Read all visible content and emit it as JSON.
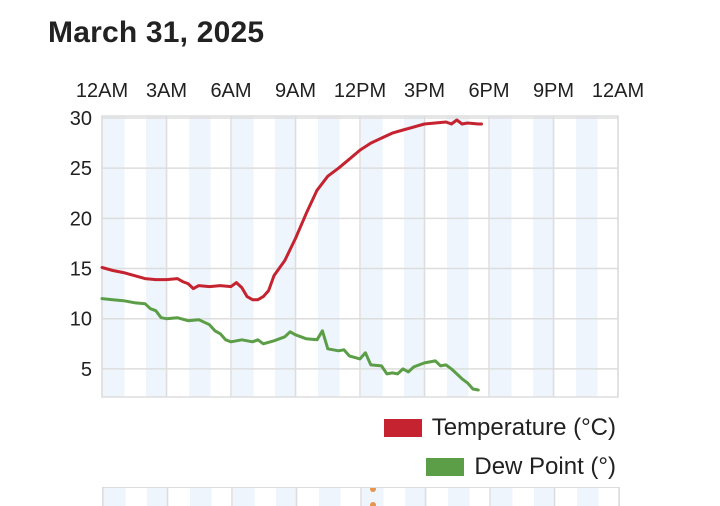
{
  "page": {
    "title": "March 31, 2025"
  },
  "colors": {
    "temperature": "#c4232f",
    "dew_point": "#5b9e47",
    "band": "#eef5fd",
    "grid": "#dddddd",
    "marker": "#e6954f"
  },
  "chart_data": {
    "type": "line",
    "title": "March 31, 2025",
    "x_axis": {
      "unit": "hour of day",
      "range": [
        0,
        24
      ],
      "tick_values": [
        0,
        3,
        6,
        9,
        12,
        15,
        18,
        21,
        24
      ],
      "tick_labels": [
        "12AM",
        "3AM",
        "6AM",
        "9AM",
        "12PM",
        "3PM",
        "6PM",
        "9PM",
        "12AM"
      ],
      "position": "top"
    },
    "y_axis": {
      "range": [
        2.2,
        30.2
      ],
      "tick_values": [
        5,
        10,
        15,
        20,
        25,
        30
      ],
      "tick_labels": [
        "5",
        "10",
        "15",
        "20",
        "25",
        "30"
      ]
    },
    "grid": true,
    "alternating_hour_bands": true,
    "legend_position": "bottom-right",
    "series": [
      {
        "name": "Temperature (°C)",
        "color": "#c4232f",
        "points": [
          [
            0.0,
            15.1
          ],
          [
            0.5,
            14.8
          ],
          [
            1.0,
            14.6
          ],
          [
            1.5,
            14.3
          ],
          [
            2.0,
            14.0
          ],
          [
            2.5,
            13.9
          ],
          [
            3.0,
            13.9
          ],
          [
            3.5,
            14.0
          ],
          [
            3.75,
            13.7
          ],
          [
            4.0,
            13.5
          ],
          [
            4.25,
            13.0
          ],
          [
            4.5,
            13.3
          ],
          [
            5.0,
            13.2
          ],
          [
            5.5,
            13.3
          ],
          [
            6.0,
            13.2
          ],
          [
            6.25,
            13.6
          ],
          [
            6.5,
            13.1
          ],
          [
            6.75,
            12.2
          ],
          [
            7.0,
            11.9
          ],
          [
            7.25,
            11.9
          ],
          [
            7.5,
            12.2
          ],
          [
            7.75,
            12.8
          ],
          [
            8.0,
            14.3
          ],
          [
            8.5,
            15.8
          ],
          [
            9.0,
            18.0
          ],
          [
            9.5,
            20.5
          ],
          [
            10.0,
            22.8
          ],
          [
            10.5,
            24.2
          ],
          [
            11.0,
            25.0
          ],
          [
            11.5,
            25.9
          ],
          [
            12.0,
            26.8
          ],
          [
            12.5,
            27.5
          ],
          [
            13.0,
            28.0
          ],
          [
            13.5,
            28.5
          ],
          [
            14.0,
            28.8
          ],
          [
            14.5,
            29.1
          ],
          [
            15.0,
            29.4
          ],
          [
            15.5,
            29.5
          ],
          [
            16.0,
            29.6
          ],
          [
            16.25,
            29.4
          ],
          [
            16.5,
            29.8
          ],
          [
            16.75,
            29.4
          ],
          [
            17.0,
            29.5
          ],
          [
            17.5,
            29.4
          ],
          [
            17.65,
            29.4
          ]
        ]
      },
      {
        "name": "Dew Point (°)",
        "color": "#5b9e47",
        "points": [
          [
            0.0,
            12.0
          ],
          [
            0.5,
            11.9
          ],
          [
            1.0,
            11.8
          ],
          [
            1.5,
            11.6
          ],
          [
            2.0,
            11.5
          ],
          [
            2.25,
            11.0
          ],
          [
            2.5,
            10.8
          ],
          [
            2.75,
            10.1
          ],
          [
            3.0,
            10.0
          ],
          [
            3.5,
            10.1
          ],
          [
            4.0,
            9.8
          ],
          [
            4.5,
            9.9
          ],
          [
            5.0,
            9.4
          ],
          [
            5.25,
            8.8
          ],
          [
            5.5,
            8.5
          ],
          [
            5.75,
            7.9
          ],
          [
            6.0,
            7.7
          ],
          [
            6.5,
            7.9
          ],
          [
            7.0,
            7.7
          ],
          [
            7.25,
            7.9
          ],
          [
            7.5,
            7.5
          ],
          [
            8.0,
            7.8
          ],
          [
            8.5,
            8.2
          ],
          [
            8.75,
            8.7
          ],
          [
            9.0,
            8.4
          ],
          [
            9.25,
            8.2
          ],
          [
            9.5,
            8.0
          ],
          [
            10.0,
            7.9
          ],
          [
            10.25,
            8.8
          ],
          [
            10.5,
            7.0
          ],
          [
            11.0,
            6.8
          ],
          [
            11.25,
            6.9
          ],
          [
            11.5,
            6.3
          ],
          [
            12.0,
            6.0
          ],
          [
            12.25,
            6.6
          ],
          [
            12.5,
            5.4
          ],
          [
            13.0,
            5.3
          ],
          [
            13.25,
            4.5
          ],
          [
            13.5,
            4.6
          ],
          [
            13.75,
            4.5
          ],
          [
            14.0,
            5.0
          ],
          [
            14.25,
            4.7
          ],
          [
            14.5,
            5.2
          ],
          [
            15.0,
            5.6
          ],
          [
            15.5,
            5.8
          ],
          [
            15.75,
            5.3
          ],
          [
            16.0,
            5.4
          ],
          [
            16.25,
            5.0
          ],
          [
            16.5,
            4.5
          ],
          [
            16.75,
            4.0
          ],
          [
            17.0,
            3.6
          ],
          [
            17.25,
            3.0
          ],
          [
            17.5,
            2.9
          ]
        ]
      }
    ]
  }
}
